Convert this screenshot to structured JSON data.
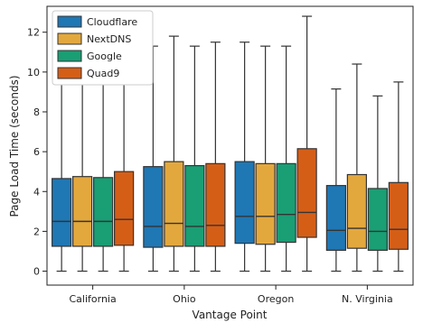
{
  "chart_data": {
    "type": "box",
    "title": "",
    "xlabel": "Vantage Point",
    "ylabel": "Page Load Time (seconds)",
    "ylim": [
      -0.7,
      13.3
    ],
    "yticks": [
      0,
      2,
      4,
      6,
      8,
      10,
      12
    ],
    "categories": [
      "California",
      "Ohio",
      "Oregon",
      "N. Virginia"
    ],
    "legend_position": "top-left",
    "grid": false,
    "series": [
      {
        "name": "Cloudflare",
        "color": "#1f77b4",
        "boxes": [
          {
            "whislo": 0.0,
            "q1": 1.25,
            "med": 2.5,
            "q3": 4.65,
            "whishi": 9.8
          },
          {
            "whislo": 0.0,
            "q1": 1.2,
            "med": 2.25,
            "q3": 5.25,
            "whishi": 11.3
          },
          {
            "whislo": 0.0,
            "q1": 1.4,
            "med": 2.75,
            "q3": 5.5,
            "whishi": 11.5
          },
          {
            "whislo": 0.0,
            "q1": 1.05,
            "med": 2.05,
            "q3": 4.3,
            "whishi": 9.15
          }
        ]
      },
      {
        "name": "NextDNS",
        "color": "#e3a83d",
        "boxes": [
          {
            "whislo": 0.0,
            "q1": 1.25,
            "med": 2.5,
            "q3": 4.75,
            "whishi": 10.0
          },
          {
            "whislo": 0.0,
            "q1": 1.25,
            "med": 2.4,
            "q3": 5.5,
            "whishi": 11.8
          },
          {
            "whislo": 0.0,
            "q1": 1.35,
            "med": 2.75,
            "q3": 5.4,
            "whishi": 11.3
          },
          {
            "whislo": 0.0,
            "q1": 1.15,
            "med": 2.15,
            "q3": 4.85,
            "whishi": 10.4
          }
        ]
      },
      {
        "name": "Google",
        "color": "#1a9e74",
        "boxes": [
          {
            "whislo": 0.0,
            "q1": 1.25,
            "med": 2.5,
            "q3": 4.7,
            "whishi": 9.9
          },
          {
            "whislo": 0.0,
            "q1": 1.25,
            "med": 2.25,
            "q3": 5.3,
            "whishi": 11.3
          },
          {
            "whislo": 0.0,
            "q1": 1.45,
            "med": 2.85,
            "q3": 5.4,
            "whishi": 11.3
          },
          {
            "whislo": 0.0,
            "q1": 1.05,
            "med": 2.0,
            "q3": 4.15,
            "whishi": 8.8
          }
        ]
      },
      {
        "name": "Quad9",
        "color": "#d55e17",
        "boxes": [
          {
            "whislo": 0.0,
            "q1": 1.3,
            "med": 2.6,
            "q3": 5.0,
            "whishi": 10.2
          },
          {
            "whislo": 0.0,
            "q1": 1.25,
            "med": 2.3,
            "q3": 5.4,
            "whishi": 11.5
          },
          {
            "whislo": 0.0,
            "q1": 1.7,
            "med": 2.95,
            "q3": 6.15,
            "whishi": 12.8
          },
          {
            "whislo": 0.0,
            "q1": 1.1,
            "med": 2.1,
            "q3": 4.45,
            "whishi": 9.5
          }
        ]
      }
    ]
  }
}
